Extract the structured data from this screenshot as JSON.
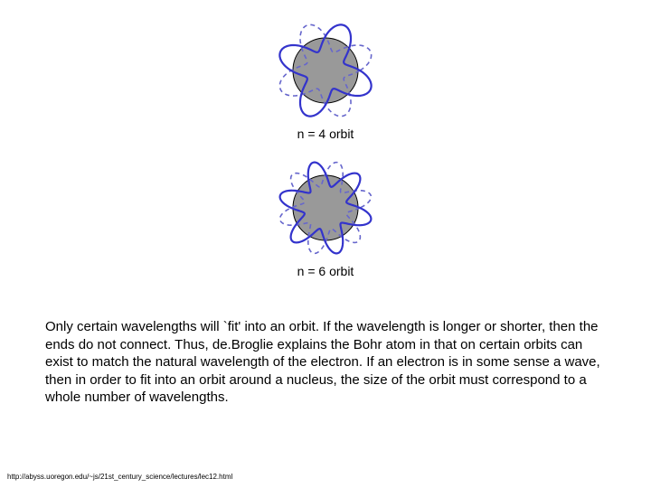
{
  "orbit_figures": [
    {
      "label": "n = 4 orbit",
      "lobes": 4,
      "circle_fill": "#999999",
      "circle_stroke": "#000000",
      "dash_color": "#6666cc",
      "wave_color": "#3333cc",
      "dash_width": 1.6,
      "wave_width": 2.2,
      "r_circle": 36,
      "r_mean": 38,
      "amp": 16
    },
    {
      "label": "n = 6 orbit",
      "lobes": 6,
      "circle_fill": "#999999",
      "circle_stroke": "#000000",
      "dash_color": "#6666cc",
      "wave_color": "#3333cc",
      "dash_width": 1.6,
      "wave_width": 2.2,
      "r_circle": 36,
      "r_mean": 38,
      "amp": 14
    }
  ],
  "body_text": "Only certain wavelengths will `fit' into an orbit. If the wavelength is longer or shorter, then the ends do not connect. Thus, de.Broglie explains the Bohr atom in that on certain orbits can exist to match the natural wavelength of the electron. If an electron is in some sense a wave, then in order to fit into an orbit around a nucleus, the size of the orbit must correspond to a whole number of wavelengths.",
  "footer_url": "http://abyss.uoregon.edu/~js/21st_century_science/lectures/lec12.html",
  "background": "#ffffff",
  "text_color": "#000000",
  "label_fontsize": 14,
  "body_fontsize": 15,
  "footer_fontsize": 8
}
